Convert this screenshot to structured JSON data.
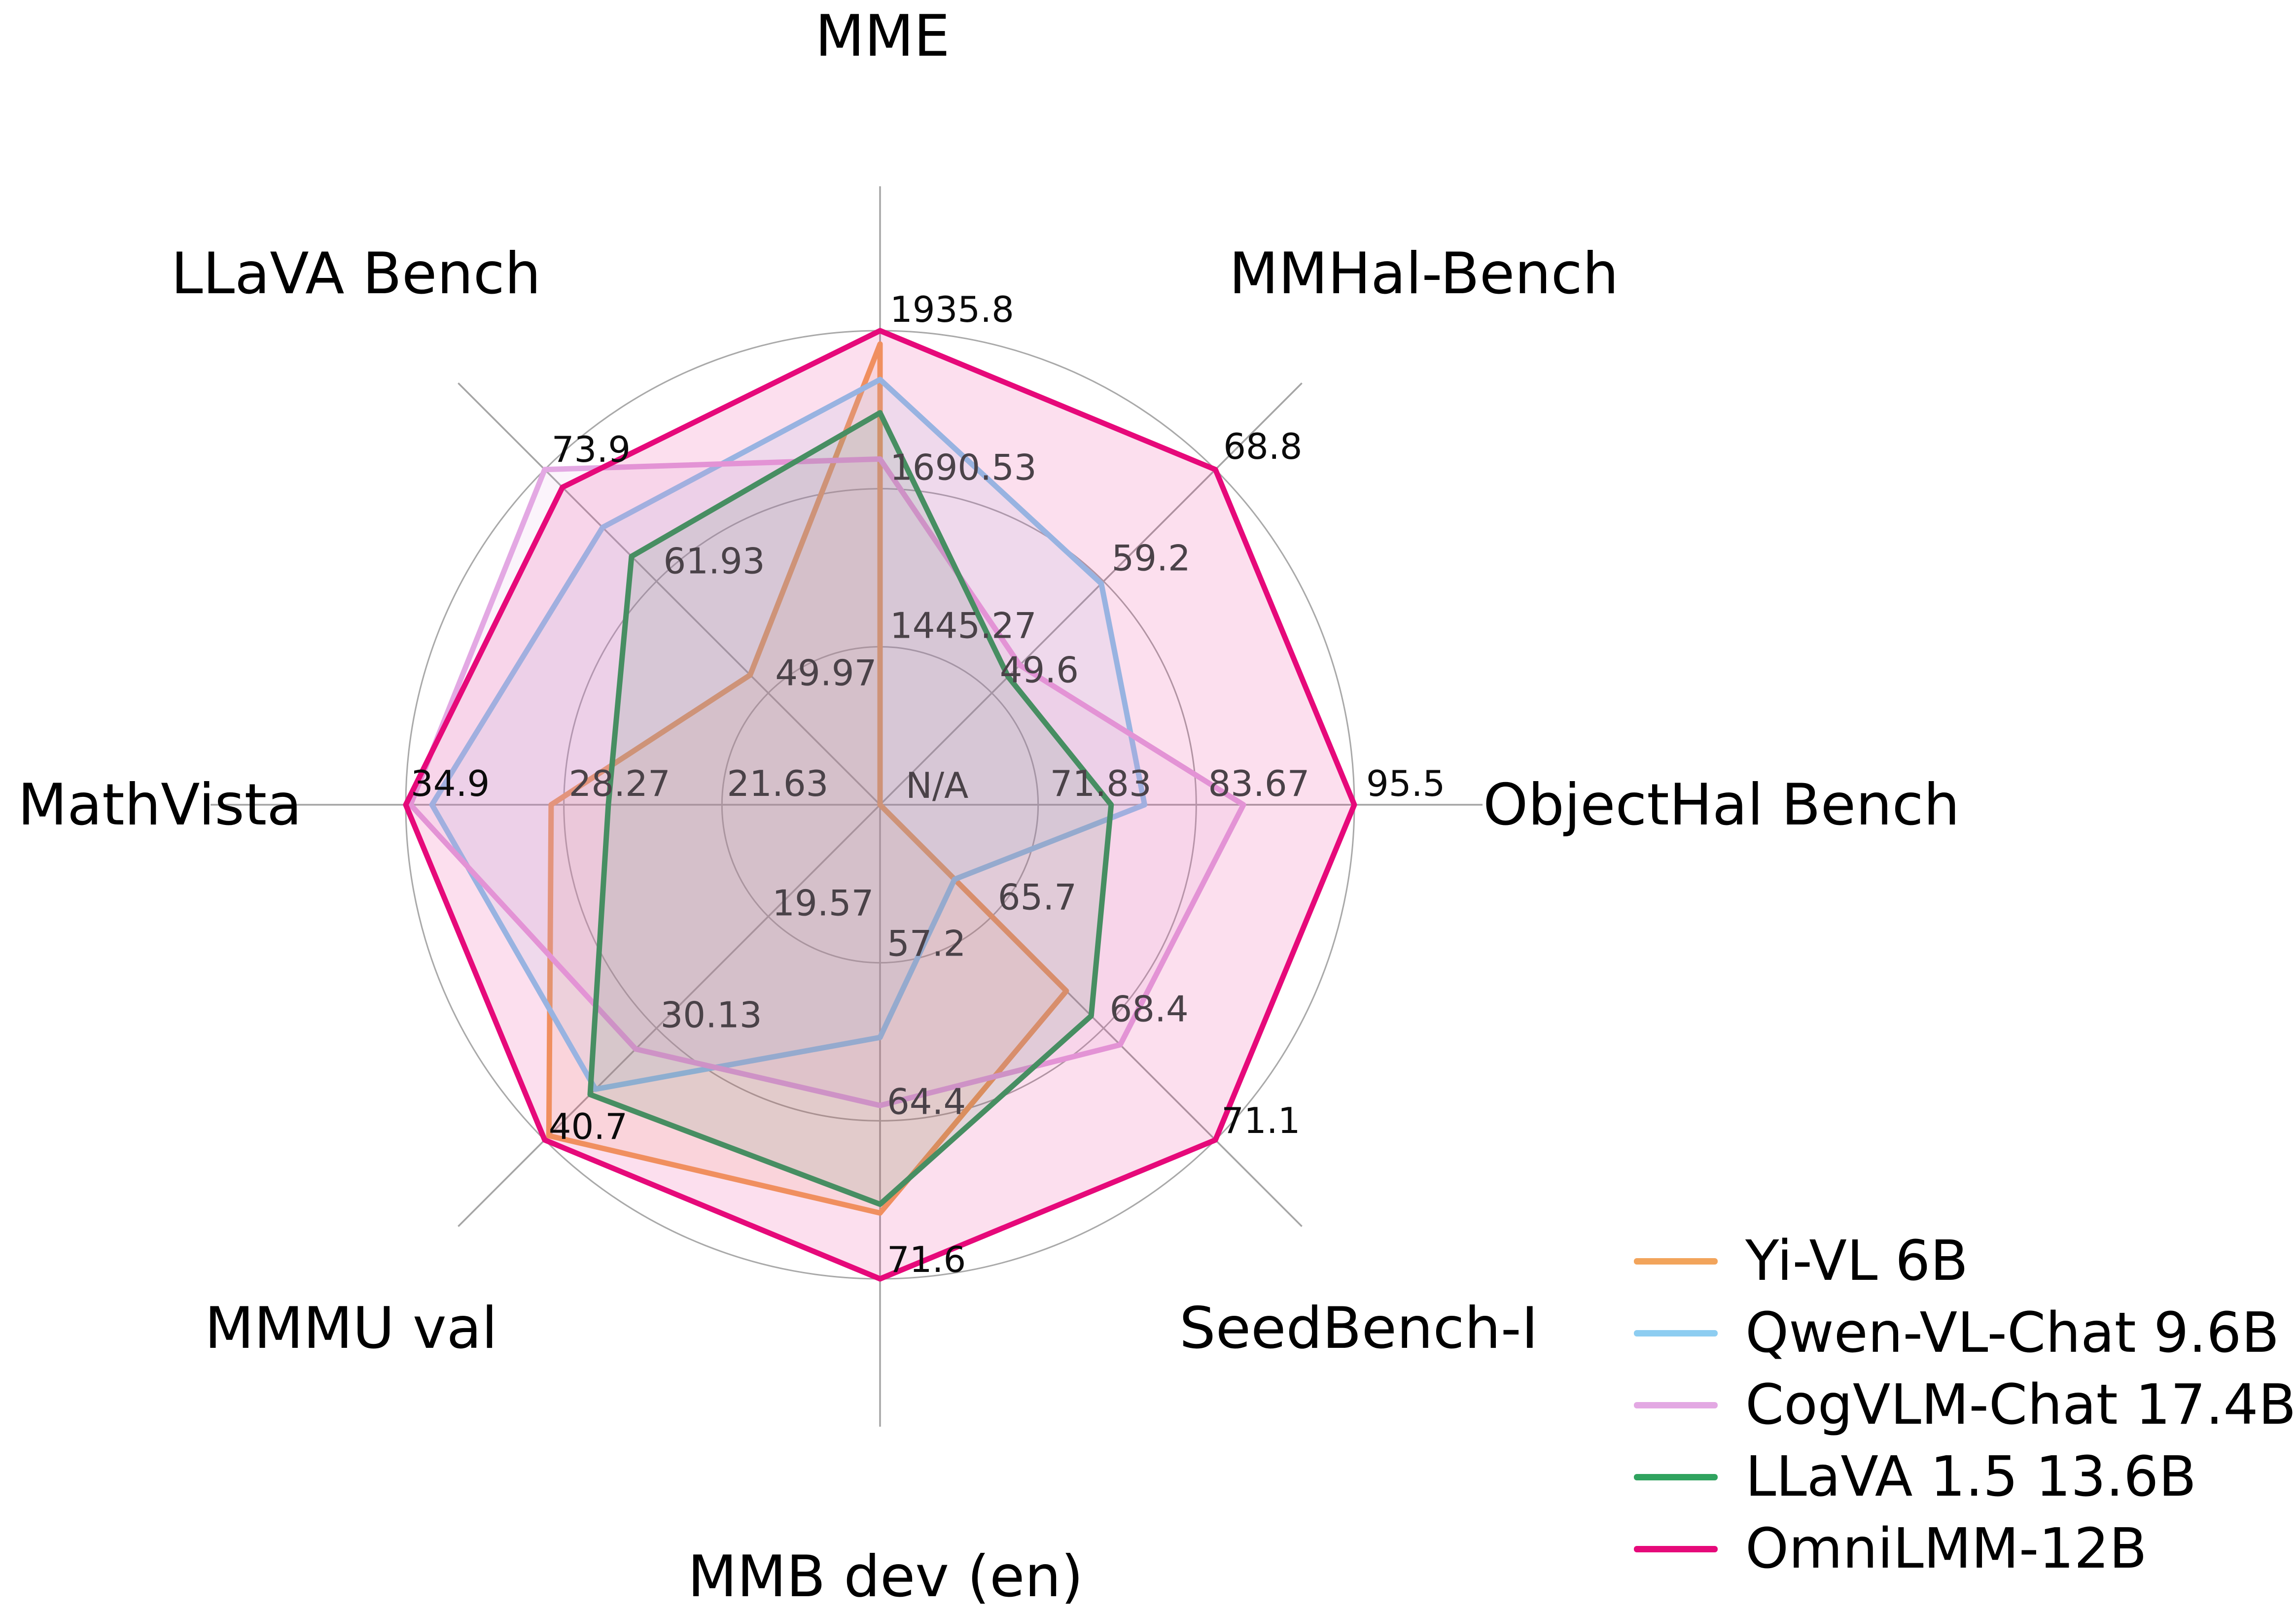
{
  "chart_data": {
    "type": "radar",
    "background": "#ffffff",
    "grid": {
      "rings": 3,
      "color": "#a9a9a9",
      "spoke_color": "#a5a5a5"
    },
    "legend_position": "bottom-right",
    "axes": [
      {
        "label": "MME",
        "min": 1200,
        "max": 1935.8,
        "ticks": [
          "1445.27",
          "1690.53",
          "1935.8"
        ]
      },
      {
        "label": "MMHal-Bench",
        "min": 40,
        "max": 68.8,
        "ticks": [
          "49.6",
          "59.2",
          "68.8"
        ]
      },
      {
        "label": "ObjectHal Bench",
        "min": 60,
        "max": 95.5,
        "ticks": [
          "71.83",
          "83.67",
          "95.5"
        ],
        "center_tick": "N/A"
      },
      {
        "label": "SeedBench-I",
        "min": 63,
        "max": 71.1,
        "ticks": [
          "65.7",
          "68.4",
          "71.1"
        ]
      },
      {
        "label": "MMB dev (en)",
        "min": 50,
        "max": 71.6,
        "ticks": [
          "57.2",
          "64.4",
          "71.6"
        ]
      },
      {
        "label": "MMMU val",
        "min": 9,
        "max": 40.7,
        "ticks": [
          "19.57",
          "30.13",
          "40.7"
        ]
      },
      {
        "label": "MathVista",
        "min": 15,
        "max": 34.9,
        "ticks": [
          "21.63",
          "28.27",
          "34.9"
        ]
      },
      {
        "label": "LLaVA Bench",
        "min": 38,
        "max": 73.9,
        "ticks": [
          "49.97",
          "61.93",
          "73.9"
        ]
      }
    ],
    "series": [
      {
        "name": "Yi-VL 6B",
        "color": "#F2A45B",
        "values": [
          1915.1,
          null,
          null,
          67.5,
          68.6,
          40.3,
          28.8,
          51.9
        ]
      },
      {
        "name": "Qwen-VL-Chat 9.6B",
        "color": "#8DCDF1",
        "values": [
          1860.0,
          59.0,
          79.8,
          64.8,
          60.6,
          35.9,
          33.8,
          67.7
        ]
      },
      {
        "name": "CogVLM-Chat 17.4B",
        "color": "#E3A8E3",
        "values": [
          1736.6,
          52.0,
          87.2,
          68.8,
          63.7,
          32.1,
          34.7,
          73.9
        ]
      },
      {
        "name": "LLaVA 1.5 13.6B",
        "color": "#30A35F",
        "values": [
          1808.4,
          51.0,
          77.3,
          68.1,
          68.2,
          36.4,
          26.4,
          64.6
        ]
      },
      {
        "name": "OmniLMM-12B",
        "color": "#E6097A",
        "values": [
          1935.8,
          68.8,
          95.5,
          71.1,
          71.6,
          40.7,
          34.9,
          72.0
        ]
      }
    ]
  }
}
